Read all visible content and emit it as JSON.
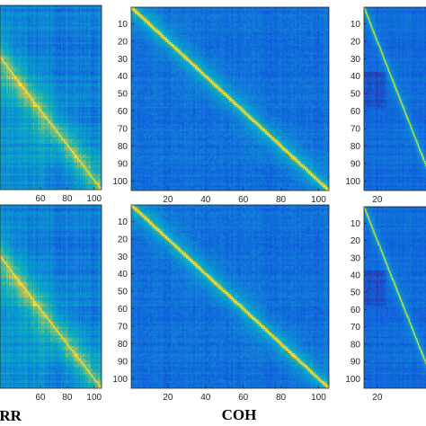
{
  "chart_data": [
    {
      "type": "heatmap",
      "panel": "top-left",
      "label": "",
      "x_ticks_visible": [
        "60",
        "80",
        "100"
      ],
      "y_ticks_visible": [],
      "matrix_size": 105,
      "pattern": "corr",
      "colormap": "parula"
    },
    {
      "type": "heatmap",
      "panel": "top-middle",
      "label": "",
      "x_ticks_visible": [
        "20",
        "40",
        "60",
        "80",
        "100"
      ],
      "y_ticks_visible": [
        "10",
        "20",
        "30",
        "40",
        "50",
        "60",
        "70",
        "80",
        "90",
        "100"
      ],
      "matrix_size": 105,
      "pattern": "coh",
      "colormap": "parula"
    },
    {
      "type": "heatmap",
      "panel": "top-right",
      "label": "",
      "x_ticks_visible": [
        "20"
      ],
      "y_ticks_visible": [
        "10",
        "20",
        "30",
        "40",
        "50",
        "60",
        "70",
        "80",
        "90",
        "100"
      ],
      "matrix_size": 105,
      "pattern": "third",
      "colormap": "parula"
    },
    {
      "type": "heatmap",
      "panel": "bottom-left",
      "label": "ORR",
      "x_ticks_visible": [
        "60",
        "80",
        "100"
      ],
      "y_ticks_visible": [],
      "matrix_size": 105,
      "pattern": "corr",
      "colormap": "parula"
    },
    {
      "type": "heatmap",
      "panel": "bottom-middle",
      "label": "COH",
      "x_ticks_visible": [
        "20",
        "40",
        "60",
        "80",
        "100"
      ],
      "y_ticks_visible": [
        "10",
        "20",
        "30",
        "40",
        "50",
        "60",
        "70",
        "80",
        "90",
        "100"
      ],
      "matrix_size": 105,
      "pattern": "coh",
      "colormap": "parula"
    },
    {
      "type": "heatmap",
      "panel": "bottom-right",
      "label": "",
      "x_ticks_visible": [
        "20"
      ],
      "y_ticks_visible": [
        "10",
        "20",
        "30",
        "40",
        "50",
        "60",
        "70",
        "80",
        "90",
        "100"
      ],
      "matrix_size": 105,
      "pattern": "third",
      "colormap": "parula"
    }
  ]
}
